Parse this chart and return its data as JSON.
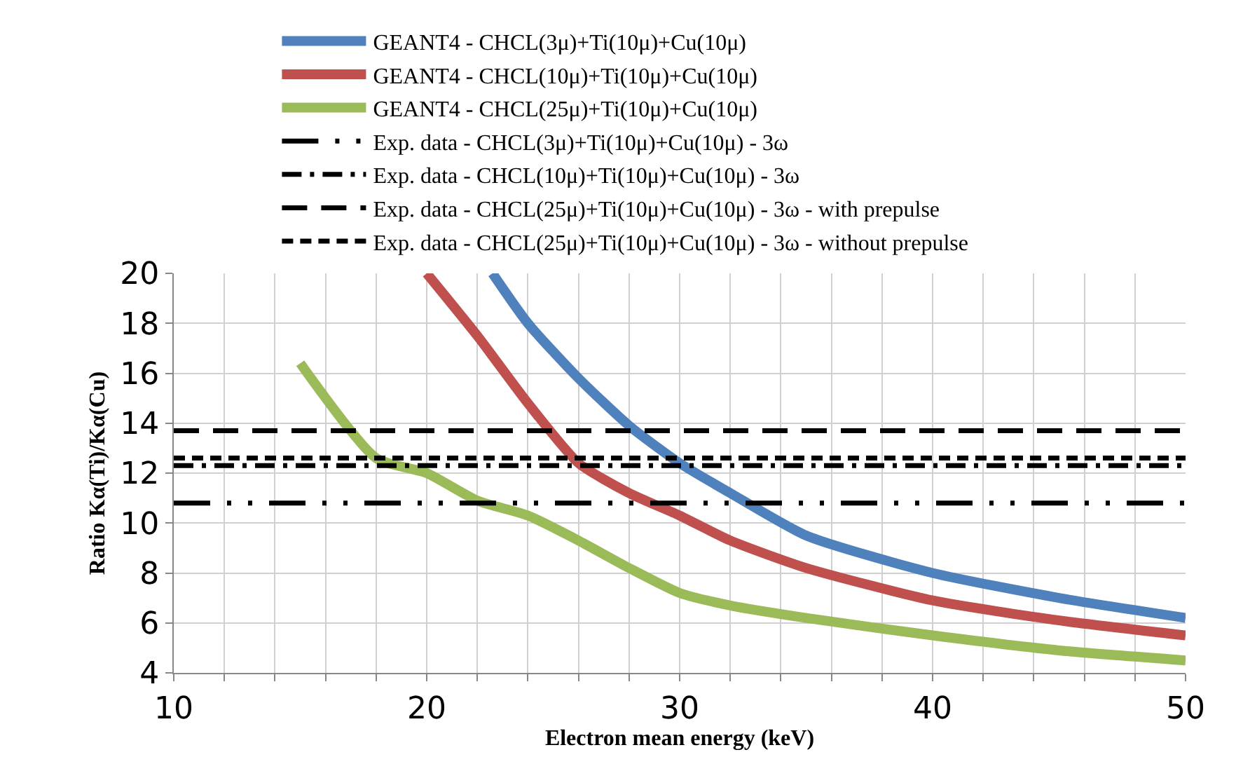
{
  "chart_data": {
    "type": "line",
    "xlabel": "Electron mean energy (keV)",
    "ylabel": "Ratio Kα(Ti)/Kα(Cu)",
    "xlim": [
      10,
      50
    ],
    "ylim": [
      4,
      20
    ],
    "xticks": [
      10,
      {
        "value": 12,
        "label": null
      },
      {
        "value": 14,
        "label": null
      },
      {
        "value": 16,
        "label": null
      },
      {
        "value": 18,
        "label": null
      },
      20,
      {
        "value": 22,
        "label": null
      },
      {
        "value": 24,
        "label": null
      },
      {
        "value": 26,
        "label": null
      },
      {
        "value": 28,
        "label": null
      },
      30,
      {
        "value": 32,
        "label": null
      },
      {
        "value": 34,
        "label": null
      },
      {
        "value": 36,
        "label": null
      },
      {
        "value": 38,
        "label": null
      },
      40,
      {
        "value": 42,
        "label": null
      },
      {
        "value": 44,
        "label": null
      },
      {
        "value": 46,
        "label": null
      },
      {
        "value": 48,
        "label": null
      },
      50
    ],
    "yticks": [
      4,
      6,
      8,
      10,
      12,
      14,
      16,
      18,
      20
    ],
    "grid": true,
    "legend": "top",
    "line_style": "solid",
    "marker": "none",
    "series": [
      {
        "name": "GEANT4 - CHCL(3μ)+Ti(10μ)+Cu(10μ)",
        "color": "#4f81bd",
        "x": [
          22.6,
          24,
          26,
          28,
          30,
          32,
          35,
          40,
          45,
          50
        ],
        "values": [
          20,
          18,
          15.8,
          13.9,
          12.4,
          11.2,
          9.5,
          8.0,
          7.0,
          6.2
        ]
      },
      {
        "name": "GEANT4 - CHCL(10μ)+Ti(10μ)+Cu(10μ)",
        "color": "#c0504d",
        "x": [
          20,
          22,
          24,
          26,
          28,
          30,
          32,
          35,
          40,
          45,
          50
        ],
        "values": [
          20,
          17.5,
          14.8,
          12.4,
          11.2,
          10.3,
          9.3,
          8.2,
          6.9,
          6.1,
          5.5
        ]
      },
      {
        "name": "GEANT4 - CHCL(25μ)+Ti(10μ)+Cu(10μ)",
        "color": "#9bbb59",
        "x": [
          15,
          18,
          20,
          22,
          24,
          26,
          28,
          30,
          32,
          35,
          40,
          45,
          50
        ],
        "values": [
          16.4,
          12.6,
          12.0,
          10.9,
          10.3,
          9.3,
          8.2,
          7.2,
          6.7,
          6.2,
          5.5,
          4.9,
          4.5
        ]
      }
    ],
    "ref_lines": [
      {
        "axis": "y",
        "value": 10.8,
        "label": "Exp. data - CHCL(3μ)+Ti(10μ)+Cu(10μ) - 3ω",
        "color": "#000000",
        "line_style": "longdashdotdot"
      },
      {
        "axis": "y",
        "value": 12.3,
        "label": "Exp. data - CHCL(10μ)+Ti(10μ)+Cu(10μ) - 3ω",
        "color": "#000000",
        "line_style": "dashdot"
      },
      {
        "axis": "y",
        "value": 13.7,
        "label": "Exp. data - CHCL(25μ)+Ti(10μ)+Cu(10μ) - 3ω - with prepulse",
        "color": "#000000",
        "line_style": "dashed"
      },
      {
        "axis": "y",
        "value": 12.6,
        "label": "Exp. data - CHCL(25μ)+Ti(10μ)+Cu(10μ) - 3ω - without prepulse",
        "color": "#000000",
        "line_style": "shortdash"
      }
    ]
  }
}
